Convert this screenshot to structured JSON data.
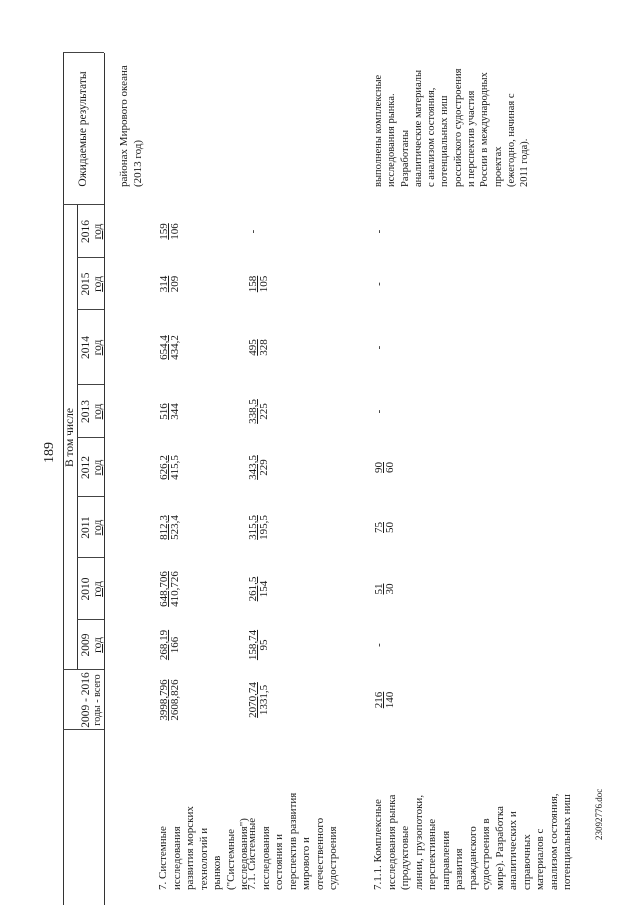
{
  "page_number": "189",
  "footer": "23092776.doc",
  "header": {
    "total_col": [
      "2009 - 2016",
      "годы - всего"
    ],
    "including_label": "В том числе",
    "years": [
      {
        "year": "2009",
        "unit": "год"
      },
      {
        "year": "2010",
        "unit": "год"
      },
      {
        "year": "2011",
        "unit": "год"
      },
      {
        "year": "2012",
        "unit": "год"
      },
      {
        "year": "2013",
        "unit": "год"
      },
      {
        "year": "2014",
        "unit": "год"
      },
      {
        "year": "2015",
        "unit": "год"
      },
      {
        "year": "2016",
        "unit": "год"
      }
    ],
    "results_col": "Ожидаемые результаты"
  },
  "carryover_result": "районах Мирового океана\n(2013 год)",
  "rows": [
    {
      "name": "7. Системные\nисследования\nразвития морских\nтехнологий и\nрынков\n(\"Системные\nисследования\")",
      "total": [
        "3998,796",
        "2608,826"
      ],
      "years": [
        [
          "268,19",
          "166"
        ],
        [
          "648,706",
          "410,726"
        ],
        [
          "812,3",
          "523,4"
        ],
        [
          "626,2",
          "415,5"
        ],
        [
          "516",
          "344"
        ],
        [
          "654,4",
          "434,2"
        ],
        [
          "314",
          "209"
        ],
        [
          "159",
          "106"
        ]
      ],
      "result": ""
    },
    {
      "name": "7.1. Системные\nисследования\nсостояния и\nперспектив развития\nмирового и\nотечественного\nсудостроения",
      "total": [
        "2070,74",
        "1331,5"
      ],
      "years": [
        [
          "158,74",
          "95"
        ],
        [
          "261,5",
          "154"
        ],
        [
          "315,5",
          "195,5"
        ],
        [
          "343,5",
          "229"
        ],
        [
          "338,5",
          "225"
        ],
        [
          "495",
          "328"
        ],
        [
          "158",
          "105"
        ],
        [
          "-",
          ""
        ]
      ],
      "result": ""
    },
    {
      "name": "7.1.1. Комплексные\nисследования рынка\n(продуктовые\nлинии, грузопотоки,\nперспективные\nнаправления\nразвития\nгражданского\nсудостроения в\nмире). Разработка\nаналитических и\nсправочных\nматериалов с\nанализом состояния,\nпотенциальных ниш",
      "total": [
        "216",
        "140"
      ],
      "years": [
        [
          "-",
          ""
        ],
        [
          "51",
          "30"
        ],
        [
          "75",
          "50"
        ],
        [
          "90",
          "60"
        ],
        [
          "-",
          ""
        ],
        [
          "-",
          ""
        ],
        [
          "-",
          ""
        ],
        [
          "-",
          ""
        ]
      ],
      "result": "выполнены комплексные\nисследования рынка.\nРазработаны\nаналитические материалы\nс анализом состояния,\nпотенциальных ниш\nроссийского судостроения\nи перспектив участия\nРоссии в международных\nпроектах\n(ежегодно, начиная с\n2011 года)."
    }
  ]
}
